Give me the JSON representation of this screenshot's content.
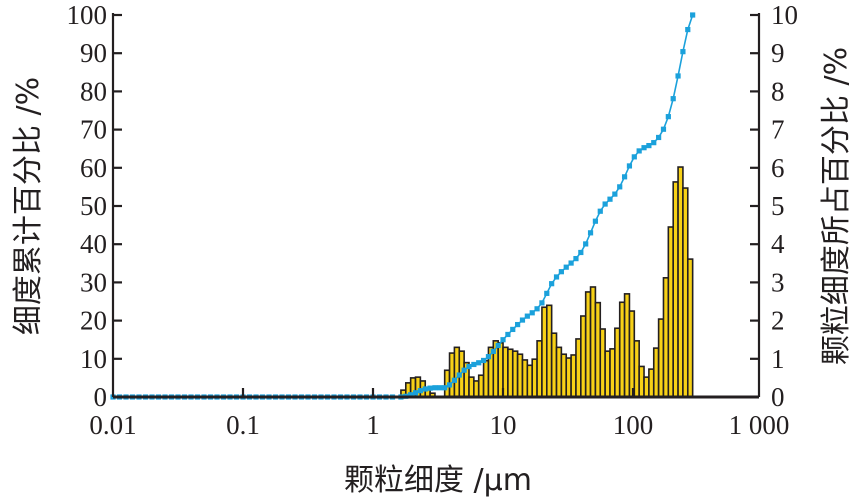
{
  "chart_data": {
    "type": "bar+line",
    "xlabel": "颗粒细度 /μm",
    "ylabel_left": "细度累计百分比 /%",
    "ylabel_right": "颗粒细度所占百分比 /%",
    "xscale": "log",
    "xlim": [
      0.01,
      1000
    ],
    "ylim_left": [
      0,
      100
    ],
    "ylim_right": [
      0,
      10
    ],
    "x_ticks": [
      "0.01",
      "0.1",
      "1",
      "10",
      "100",
      "1 000"
    ],
    "x_tick_values": [
      0.01,
      0.1,
      1,
      10,
      100,
      1000
    ],
    "y_left_ticks": [
      "0",
      "10",
      "20",
      "30",
      "40",
      "50",
      "60",
      "70",
      "80",
      "90",
      "100"
    ],
    "y_right_ticks": [
      "0",
      "1",
      "2",
      "3",
      "4",
      "5",
      "6",
      "7",
      "8",
      "9",
      "10"
    ],
    "grid": false,
    "bars": {
      "name": "颗粒细度所占百分比",
      "axis": "right",
      "color": "#f7d117",
      "edge_color": "#231f20",
      "bin_start_um": 1.64,
      "bin_log_step_decades": 0.0374,
      "values": [
        0.18,
        0.37,
        0.5,
        0.52,
        0.42,
        0.2,
        0.1,
        0,
        0,
        0.7,
        1.15,
        1.3,
        1.2,
        0.9,
        0.52,
        0.42,
        0.57,
        0.95,
        1.3,
        1.47,
        1.42,
        1.3,
        1.25,
        1.2,
        1.12,
        0.97,
        0.83,
        0.99,
        1.47,
        2.35,
        2.4,
        1.67,
        1.3,
        1.12,
        1.02,
        1.1,
        1.52,
        2.12,
        2.75,
        2.88,
        2.47,
        1.78,
        1.2,
        1.26,
        1.8,
        2.48,
        2.7,
        2.25,
        1.47,
        0.8,
        0.52,
        0.73,
        1.28,
        2.04,
        3.12,
        4.45,
        5.63,
        6.02,
        5.47,
        3.61
      ]
    },
    "line": {
      "name": "细度累计百分比",
      "axis": "left",
      "color": "#1ba1db",
      "marker": "square",
      "definition": "cumulative sum of bar values, normalized to 100 at the last bin; 0 from 0.01 μm to first bin"
    }
  }
}
